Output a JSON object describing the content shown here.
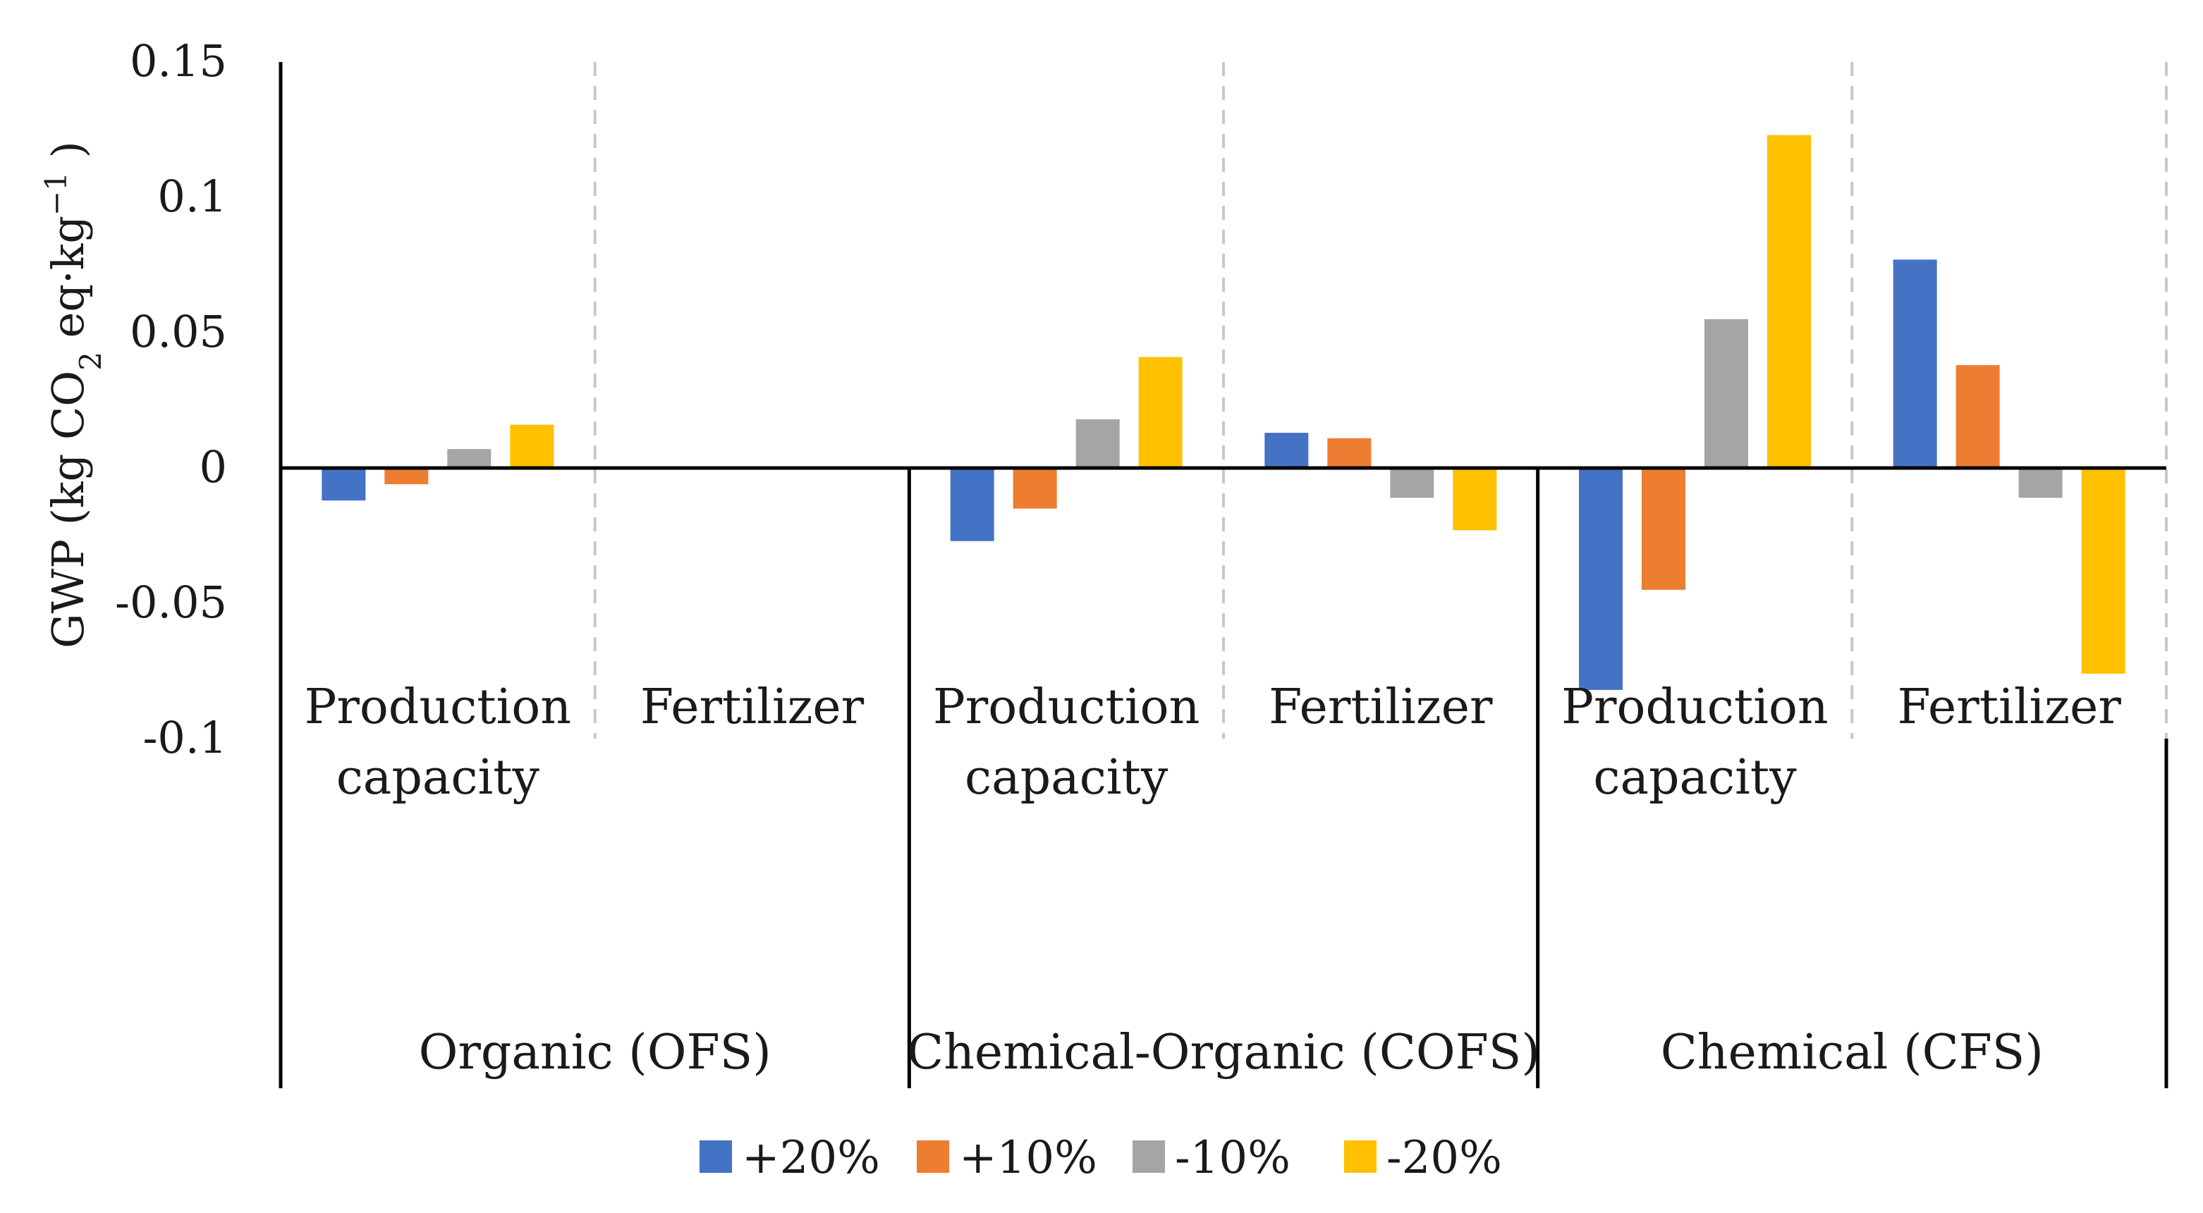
{
  "chart_data": {
    "type": "bar",
    "title": "",
    "ylabel_parts": [
      "GWP (kg CO",
      "2",
      " eq·kg",
      "−1",
      " )"
    ],
    "xlabel": "",
    "ylim": [
      -0.1,
      0.15
    ],
    "y_ticks": [
      0.15,
      0.1,
      0.05,
      0,
      -0.05,
      -0.1
    ],
    "y_tick_labels": [
      "0.15",
      "0.1",
      "0.05",
      "0",
      "-0.05",
      "-0.1"
    ],
    "grid": false,
    "legend_position": "bottom",
    "groups": [
      {
        "label": "Organic (OFS)",
        "categories": [
          {
            "label_lines": [
              "Production",
              "capacity"
            ],
            "values": [
              -0.012,
              -0.006,
              0.007,
              0.016
            ]
          },
          {
            "label_lines": [
              "Fertilizer"
            ],
            "values": [
              0,
              0,
              0,
              0
            ]
          }
        ]
      },
      {
        "label": "Chemical-Organic (COFS)",
        "categories": [
          {
            "label_lines": [
              "Production",
              "capacity"
            ],
            "values": [
              -0.027,
              -0.015,
              0.018,
              0.041
            ]
          },
          {
            "label_lines": [
              "Fertilizer"
            ],
            "values": [
              0.013,
              0.011,
              -0.011,
              -0.023
            ]
          }
        ]
      },
      {
        "label": "Chemical (CFS)",
        "categories": [
          {
            "label_lines": [
              "Production",
              "capacity"
            ],
            "values": [
              -0.082,
              -0.045,
              0.055,
              0.123
            ]
          },
          {
            "label_lines": [
              "Fertilizer"
            ],
            "values": [
              0.077,
              0.038,
              -0.011,
              -0.076
            ]
          }
        ]
      }
    ],
    "series": [
      {
        "name": "+20%",
        "color": "#4472C4"
      },
      {
        "name": "+10%",
        "color": "#ED7D31"
      },
      {
        "name": "-10%",
        "color": "#A5A5A5"
      },
      {
        "name": "-20%",
        "color": "#FFC000"
      }
    ]
  }
}
